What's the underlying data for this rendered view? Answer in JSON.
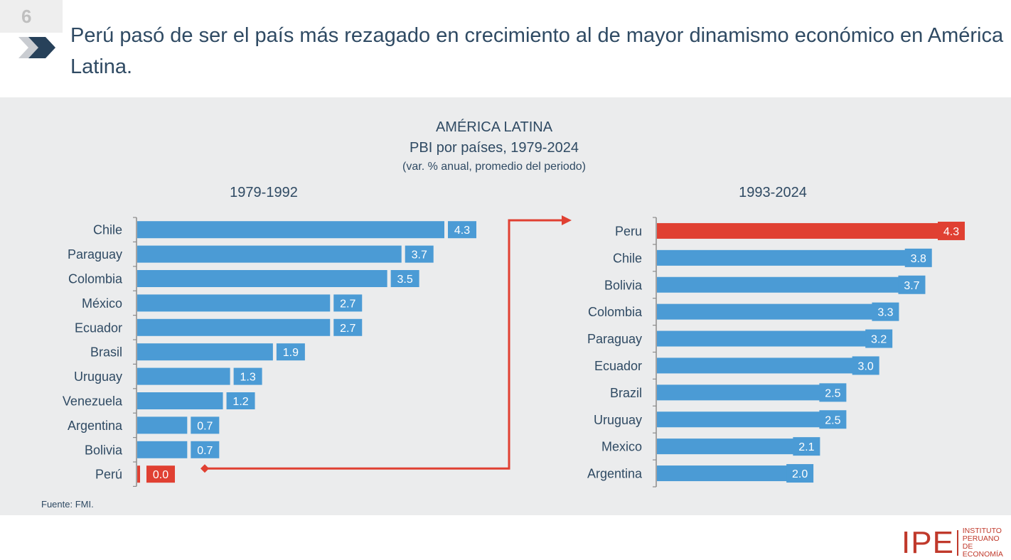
{
  "slide": {
    "number": "6"
  },
  "header": {
    "title": "Perú pasó de ser el país más rezagado en crecimiento al de mayor dinamismo económico en América Latina."
  },
  "chart_header": {
    "line1": "AMÉRICA LATINA",
    "line2": "PBI por países, 1979-2024",
    "line3": "(var. % anual, promedio del periodo)"
  },
  "footer": {
    "source": "Fuente: FMI.",
    "logo_text": "IPE",
    "logo_lines": [
      "INSTITUTO",
      "PERUANO",
      "DE ECONOMÍA"
    ]
  },
  "colors": {
    "bar": "#4b9bd5",
    "highlight": "#e04032",
    "panel": "#ebeced",
    "text": "#2f4a63"
  },
  "chart_data": [
    {
      "type": "bar",
      "orientation": "horizontal",
      "title": "1979-1992",
      "categories": [
        "Chile",
        "Paraguay",
        "Colombia",
        "México",
        "Ecuador",
        "Brasil",
        "Uruguay",
        "Venezuela",
        "Argentina",
        "Bolivia",
        "Perú"
      ],
      "values": [
        4.3,
        3.7,
        3.5,
        2.7,
        2.7,
        1.9,
        1.3,
        1.2,
        0.7,
        0.7,
        0.0
      ],
      "labels": [
        "4.3",
        "3.7",
        "3.5",
        "2.7",
        "2.7",
        "1.9",
        "1.3",
        "1.2",
        "0.7",
        "0.7",
        "0.0"
      ],
      "highlight": "Perú",
      "xlim": [
        0,
        4.3
      ]
    },
    {
      "type": "bar",
      "orientation": "horizontal",
      "title": "1993-2024",
      "categories": [
        "Peru",
        "Chile",
        "Bolivia",
        "Colombia",
        "Paraguay",
        "Ecuador",
        "Brazil",
        "Uruguay",
        "Mexico",
        "Argentina"
      ],
      "values": [
        4.3,
        3.8,
        3.7,
        3.3,
        3.2,
        3.0,
        2.5,
        2.5,
        2.1,
        2.0
      ],
      "labels": [
        "4.3",
        "3.8",
        "3.7",
        "3.3",
        "3.2",
        "3.0",
        "2.5",
        "2.5",
        "2.1",
        "2.0"
      ],
      "highlight": "Peru",
      "xlim": [
        0,
        4.3
      ]
    }
  ]
}
